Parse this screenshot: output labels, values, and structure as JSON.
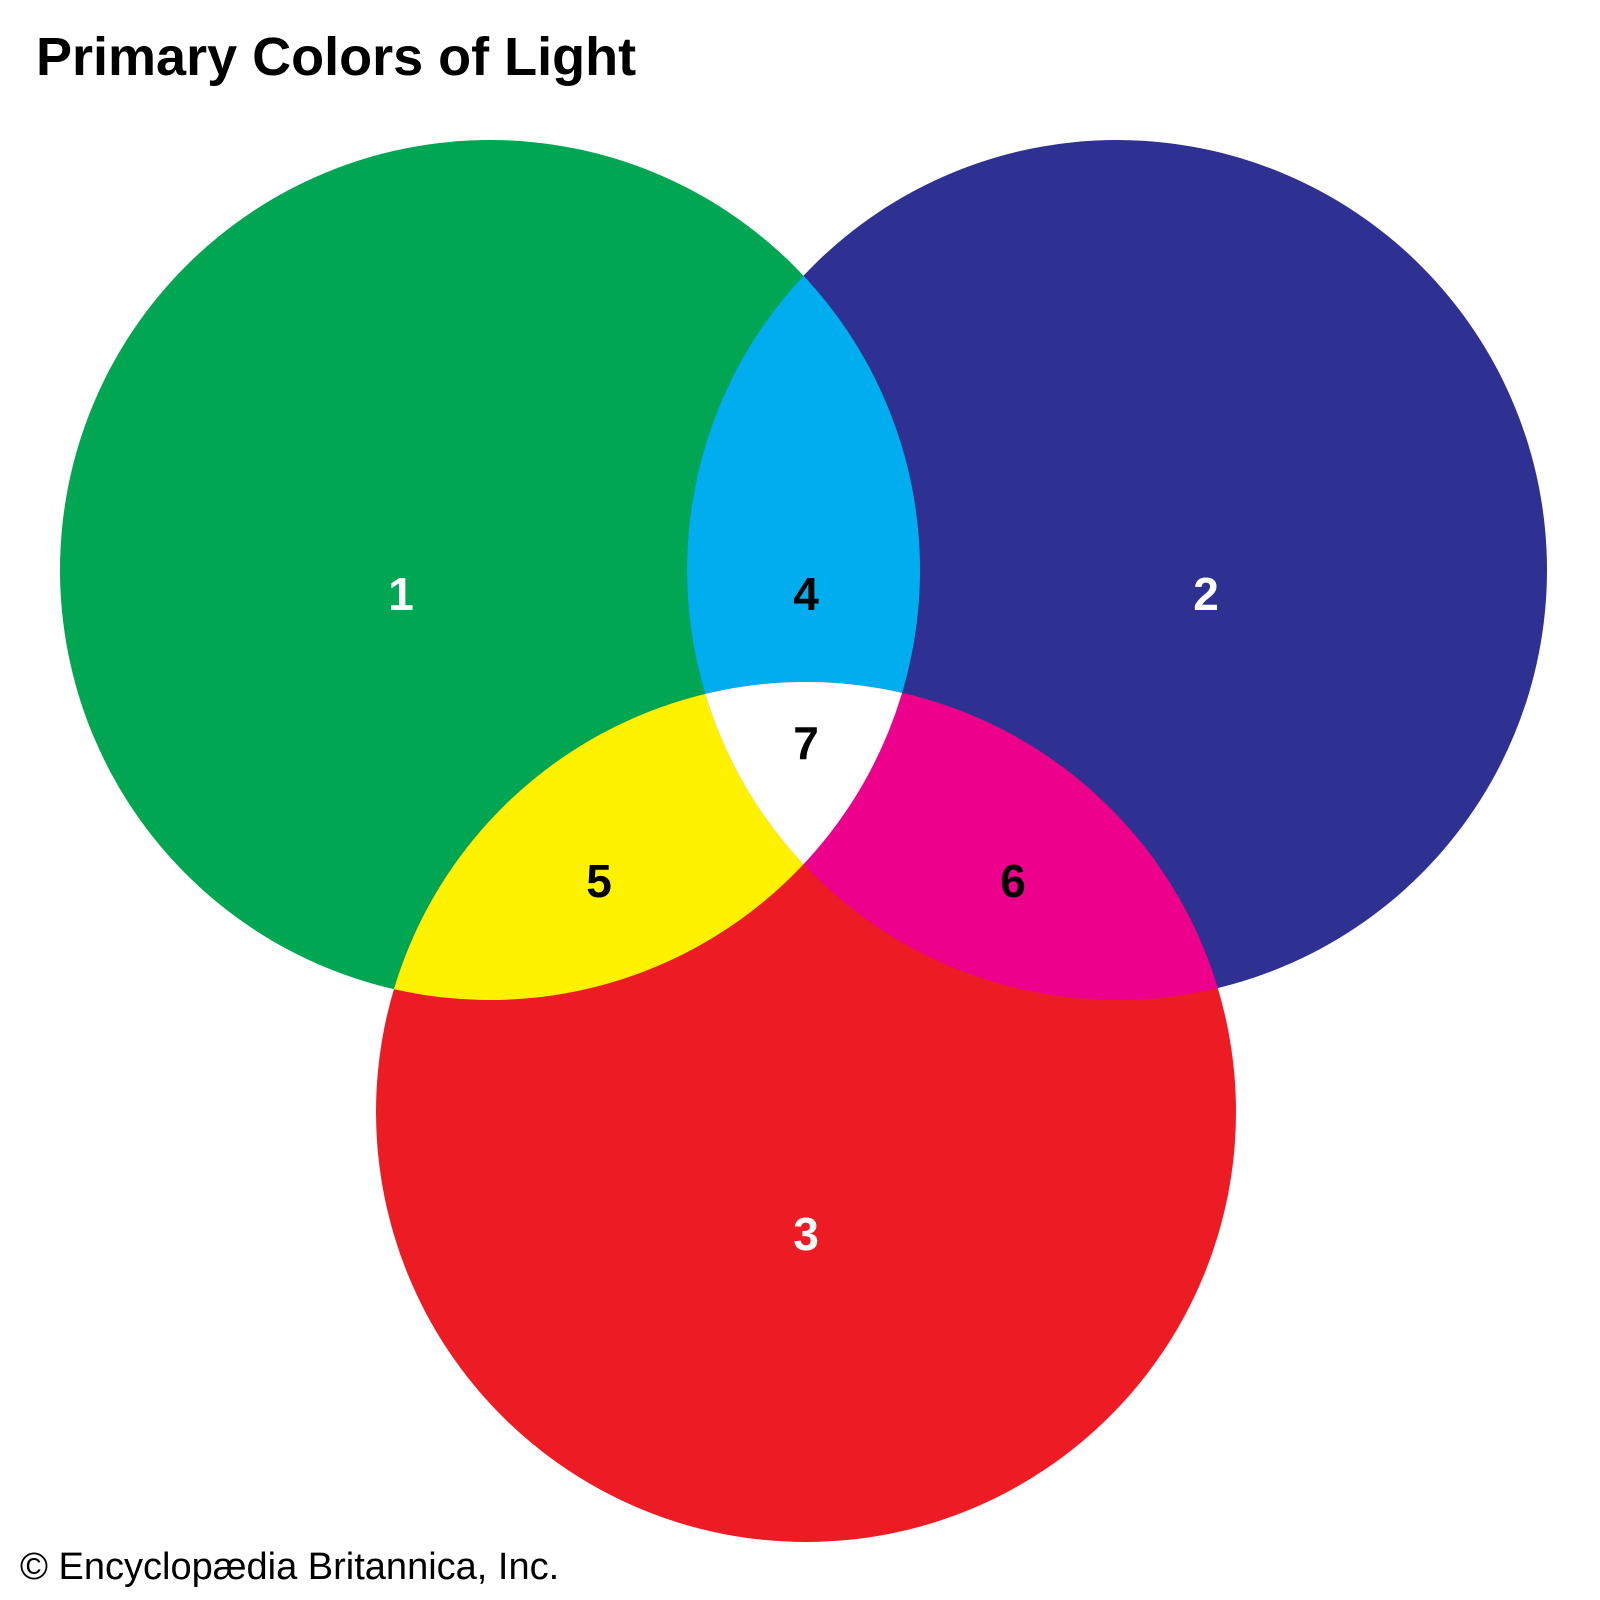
{
  "title": "Primary Colors of Light",
  "credit": "© Encyclopædia Britannica, Inc.",
  "colors": {
    "green": "#00A651",
    "blue": "#2E3192",
    "red": "#ED1C24",
    "cyan": "#00AEEF",
    "yellow": "#FFF200",
    "magenta": "#EC008C",
    "white": "#FFFFFF"
  },
  "regions": {
    "r1": "1",
    "r2": "2",
    "r3": "3",
    "r4": "4",
    "r5": "5",
    "r6": "6",
    "r7": "7"
  }
}
